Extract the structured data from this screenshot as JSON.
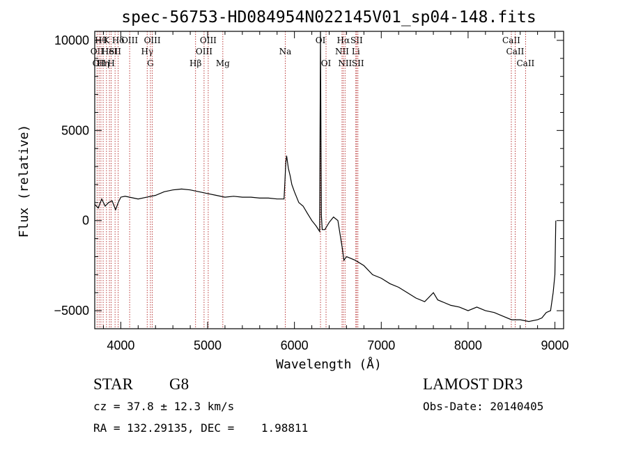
{
  "chart_data": {
    "type": "line",
    "title": "spec-56753-HD084954N022145V01_sp04-148.fits",
    "xlabel": "Wavelength (Å)",
    "ylabel": "Flux (relative)",
    "xlim": [
      3700,
      9100
    ],
    "ylim": [
      -6000,
      10500
    ],
    "xticks": [
      4000,
      5000,
      6000,
      7000,
      8000,
      9000
    ],
    "yticks": [
      -5000,
      0,
      5000,
      10000
    ],
    "grid": false,
    "series": [
      {
        "x": [
          3700,
          3740,
          3780,
          3820,
          3860,
          3900,
          3940,
          3970,
          4000,
          4050,
          4100,
          4200,
          4300,
          4400,
          4500,
          4600,
          4700,
          4800,
          4900,
          5000,
          5100,
          5200,
          5300,
          5400,
          5500,
          5600,
          5700,
          5800,
          5880,
          5890,
          5900,
          5910,
          5930,
          5950,
          5970,
          6000,
          6050,
          6100,
          6150,
          6200,
          6250,
          6290,
          6300,
          6310,
          6320,
          6350,
          6400,
          6450,
          6500,
          6550,
          6570,
          6600,
          6700,
          6800,
          6900,
          7000,
          7100,
          7200,
          7300,
          7400,
          7500,
          7600,
          7650,
          7700,
          7800,
          7900,
          8000,
          8100,
          8200,
          8300,
          8400,
          8500,
          8600,
          8700,
          8800,
          8850,
          8900,
          8950,
          8980,
          9000,
          9010
        ],
        "y": [
          900,
          700,
          1200,
          800,
          1000,
          1100,
          600,
          1000,
          1300,
          1350,
          1300,
          1200,
          1300,
          1400,
          1600,
          1700,
          1750,
          1700,
          1600,
          1500,
          1400,
          1300,
          1350,
          1300,
          1300,
          1250,
          1250,
          1200,
          1200,
          2100,
          3200,
          3600,
          2900,
          2500,
          2000,
          1600,
          1000,
          800,
          400,
          0,
          -300,
          -600,
          10500,
          300,
          -500,
          -500,
          -100,
          200,
          0,
          -1500,
          -2200,
          -2000,
          -2200,
          -2500,
          -3000,
          -3200,
          -3500,
          -3700,
          -4000,
          -4300,
          -4500,
          -4000,
          -4400,
          -4500,
          -4700,
          -4800,
          -5000,
          -4800,
          -5000,
          -5100,
          -5300,
          -5500,
          -5500,
          -5600,
          -5500,
          -5400,
          -5100,
          -5000,
          -4000,
          -3000,
          0
        ]
      }
    ],
    "lines": [
      {
        "wave": 3727,
        "label": "OII",
        "row": 2
      },
      {
        "wave": 3750,
        "label": "OII",
        "row": 3
      },
      {
        "wave": 3771,
        "label": "Hθ",
        "row": 1
      },
      {
        "wave": 3797,
        "label": "Hη",
        "row": 3
      },
      {
        "wave": 3835,
        "label": "K",
        "row": 1
      },
      {
        "wave": 3869,
        "label": "HeI",
        "row": 2
      },
      {
        "wave": 3889,
        "label": "H",
        "row": 3
      },
      {
        "wave": 3934,
        "label": "SII",
        "row": 2
      },
      {
        "wave": 3970,
        "label": "Hδ",
        "row": 1
      },
      {
        "wave": 4102,
        "label": "OIII",
        "row": 1
      },
      {
        "wave": 4304,
        "label": "Hγ",
        "row": 2
      },
      {
        "wave": 4341,
        "label": "G",
        "row": 3
      },
      {
        "wave": 4363,
        "label": "OIII",
        "row": 1
      },
      {
        "wave": 4861,
        "label": "Hβ",
        "row": 3
      },
      {
        "wave": 4959,
        "label": "OIII",
        "row": 2
      },
      {
        "wave": 5007,
        "label": "OIII",
        "row": 1
      },
      {
        "wave": 5175,
        "label": "Mg",
        "row": 3
      },
      {
        "wave": 5894,
        "label": "Na",
        "row": 2
      },
      {
        "wave": 6300,
        "label": "OI",
        "row": 1
      },
      {
        "wave": 6364,
        "label": "OI",
        "row": 3
      },
      {
        "wave": 6548,
        "label": "NII",
        "row": 2
      },
      {
        "wave": 6563,
        "label": "Hα",
        "row": 1
      },
      {
        "wave": 6583,
        "label": "NII",
        "row": 3
      },
      {
        "wave": 6707,
        "label": "Li",
        "row": 2
      },
      {
        "wave": 6716,
        "label": "SII",
        "row": 1
      },
      {
        "wave": 6731,
        "label": "SII",
        "row": 3
      },
      {
        "wave": 8498,
        "label": "CaII",
        "row": 1
      },
      {
        "wave": 8542,
        "label": "CaII",
        "row": 2
      },
      {
        "wave": 8662,
        "label": "CaII",
        "row": 3
      }
    ]
  },
  "info": {
    "object_type": "STAR",
    "subclass": "G8",
    "survey": "LAMOST DR3",
    "cz": "cz = 37.8 ± 12.3 km/s",
    "obs_date": "Obs-Date: 20140405",
    "coords": "RA = 132.29135, DEC =    1.98811"
  }
}
